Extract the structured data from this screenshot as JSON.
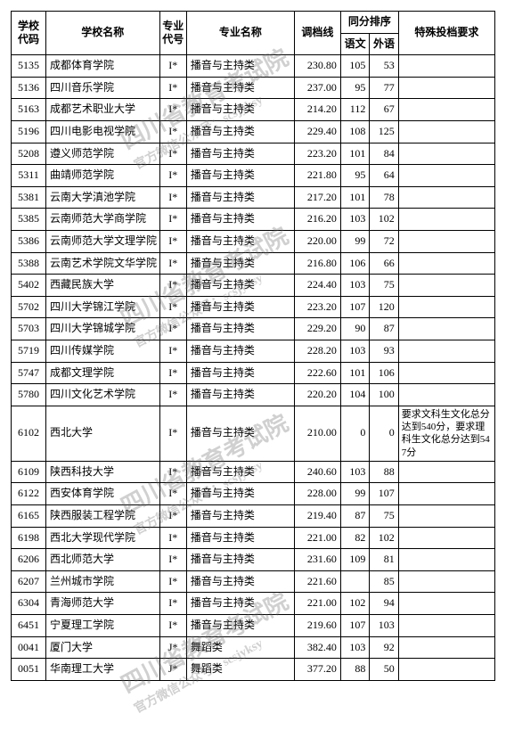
{
  "headers": {
    "school_code": "学校代码",
    "school_name": "学校名称",
    "major_code": "专业代号",
    "major_name": "专业名称",
    "line": "调档线",
    "same_score": "同分排序",
    "yuwen": "语文",
    "waiyu": "外语",
    "special": "特殊投档要求"
  },
  "rows": [
    {
      "c": "5135",
      "n": "成都体育学院",
      "mc": "I*",
      "mn": "播音与主持类",
      "l": "230.80",
      "y": "105",
      "w": "53",
      "r": ""
    },
    {
      "c": "5136",
      "n": "四川音乐学院",
      "mc": "I*",
      "mn": "播音与主持类",
      "l": "237.00",
      "y": "95",
      "w": "77",
      "r": ""
    },
    {
      "c": "5163",
      "n": "成都艺术职业大学",
      "mc": "I*",
      "mn": "播音与主持类",
      "l": "214.20",
      "y": "112",
      "w": "67",
      "r": ""
    },
    {
      "c": "5196",
      "n": "四川电影电视学院",
      "mc": "I*",
      "mn": "播音与主持类",
      "l": "229.40",
      "y": "108",
      "w": "125",
      "r": ""
    },
    {
      "c": "5208",
      "n": "遵义师范学院",
      "mc": "I*",
      "mn": "播音与主持类",
      "l": "223.20",
      "y": "101",
      "w": "84",
      "r": ""
    },
    {
      "c": "5311",
      "n": "曲靖师范学院",
      "mc": "I*",
      "mn": "播音与主持类",
      "l": "221.80",
      "y": "95",
      "w": "64",
      "r": ""
    },
    {
      "c": "5381",
      "n": "云南大学滇池学院",
      "mc": "I*",
      "mn": "播音与主持类",
      "l": "217.20",
      "y": "101",
      "w": "78",
      "r": ""
    },
    {
      "c": "5385",
      "n": "云南师范大学商学院",
      "mc": "I*",
      "mn": "播音与主持类",
      "l": "216.20",
      "y": "103",
      "w": "102",
      "r": ""
    },
    {
      "c": "5386",
      "n": "云南师范大学文理学院",
      "mc": "I*",
      "mn": "播音与主持类",
      "l": "220.00",
      "y": "99",
      "w": "72",
      "r": ""
    },
    {
      "c": "5388",
      "n": "云南艺术学院文华学院",
      "mc": "I*",
      "mn": "播音与主持类",
      "l": "216.80",
      "y": "106",
      "w": "66",
      "r": ""
    },
    {
      "c": "5402",
      "n": "西藏民族大学",
      "mc": "I*",
      "mn": "播音与主持类",
      "l": "224.40",
      "y": "103",
      "w": "75",
      "r": ""
    },
    {
      "c": "5702",
      "n": "四川大学锦江学院",
      "mc": "I*",
      "mn": "播音与主持类",
      "l": "223.20",
      "y": "107",
      "w": "120",
      "r": ""
    },
    {
      "c": "5703",
      "n": "四川大学锦城学院",
      "mc": "I*",
      "mn": "播音与主持类",
      "l": "229.20",
      "y": "90",
      "w": "87",
      "r": ""
    },
    {
      "c": "5719",
      "n": "四川传媒学院",
      "mc": "I*",
      "mn": "播音与主持类",
      "l": "228.20",
      "y": "103",
      "w": "93",
      "r": ""
    },
    {
      "c": "5747",
      "n": "成都文理学院",
      "mc": "I*",
      "mn": "播音与主持类",
      "l": "222.60",
      "y": "101",
      "w": "106",
      "r": ""
    },
    {
      "c": "5780",
      "n": "四川文化艺术学院",
      "mc": "I*",
      "mn": "播音与主持类",
      "l": "220.20",
      "y": "104",
      "w": "100",
      "r": ""
    },
    {
      "c": "6102",
      "n": "西北大学",
      "mc": "I*",
      "mn": "播音与主持类",
      "l": "210.00",
      "y": "0",
      "w": "0",
      "r": "要求文科生文化总分达到540分，要求理科生文化总分达到547分"
    },
    {
      "c": "6109",
      "n": "陕西科技大学",
      "mc": "I*",
      "mn": "播音与主持类",
      "l": "240.60",
      "y": "103",
      "w": "88",
      "r": ""
    },
    {
      "c": "6122",
      "n": "西安体育学院",
      "mc": "I*",
      "mn": "播音与主持类",
      "l": "228.00",
      "y": "99",
      "w": "107",
      "r": ""
    },
    {
      "c": "6165",
      "n": "陕西服装工程学院",
      "mc": "I*",
      "mn": "播音与主持类",
      "l": "219.40",
      "y": "87",
      "w": "75",
      "r": ""
    },
    {
      "c": "6198",
      "n": "西北大学现代学院",
      "mc": "I*",
      "mn": "播音与主持类",
      "l": "221.00",
      "y": "82",
      "w": "102",
      "r": ""
    },
    {
      "c": "6206",
      "n": "西北师范大学",
      "mc": "I*",
      "mn": "播音与主持类",
      "l": "231.60",
      "y": "109",
      "w": "81",
      "r": ""
    },
    {
      "c": "6207",
      "n": "兰州城市学院",
      "mc": "I*",
      "mn": "播音与主持类",
      "l": "221.60",
      "y": "",
      "w": "85",
      "r": ""
    },
    {
      "c": "6304",
      "n": "青海师范大学",
      "mc": "I*",
      "mn": "播音与主持类",
      "l": "221.00",
      "y": "102",
      "w": "94",
      "r": ""
    },
    {
      "c": "6451",
      "n": "宁夏理工学院",
      "mc": "I*",
      "mn": "播音与主持类",
      "l": "219.60",
      "y": "107",
      "w": "103",
      "r": ""
    },
    {
      "c": "0041",
      "n": "厦门大学",
      "mc": "J*",
      "mn": "舞蹈类",
      "l": "382.40",
      "y": "103",
      "w": "92",
      "r": ""
    },
    {
      "c": "0051",
      "n": "华南理工大学",
      "mc": "J*",
      "mn": "舞蹈类",
      "l": "377.20",
      "y": "88",
      "w": "50",
      "r": ""
    }
  ],
  "watermark": {
    "main": "四川省教育考试院",
    "sub": "官方微信公众号：scsjyksy"
  },
  "style": {
    "border_color": "#000000",
    "bg_color": "#ffffff",
    "font_size_cell": 12,
    "font_size_req": 11,
    "wm_color": "rgba(100,100,100,0.30)"
  }
}
